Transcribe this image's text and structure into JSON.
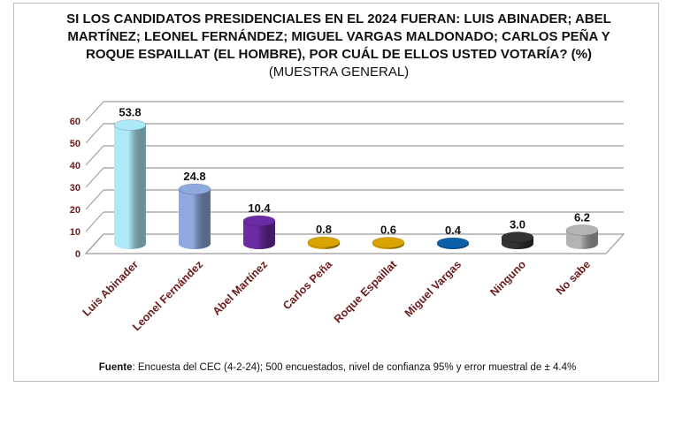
{
  "chart_data": {
    "type": "bar",
    "title": "SI LOS CANDIDATOS PRESIDENCIALES EN EL 2024 FUERAN: LUIS ABINADER; ABEL MARTÍNEZ; LEONEL FERNÁNDEZ; MIGUEL VARGAS MALDONADO; CARLOS PEÑA Y ROQUE ESPAILLAT (EL HOMBRE), POR CUÁL DE ELLOS USTED VOTARÍA? (%)",
    "subtitle": "(MUESTRA GENERAL)",
    "categories": [
      "Luis Abinader",
      "Leonel Fernández",
      "Abel Martínez",
      "Carlos Peña",
      "Roque Espaillat",
      "Miguel Vargas",
      "Ninguno",
      "No sabe"
    ],
    "values": [
      53.8,
      24.8,
      10.4,
      0.8,
      0.6,
      0.4,
      3.0,
      6.2
    ],
    "value_labels": [
      "53.8",
      "24.8",
      "10.4",
      "0.8",
      "0.6",
      "0.4",
      "3.0",
      "6.2"
    ],
    "colors": [
      "#aee9f7",
      "#8ea9dd",
      "#6b2ba3",
      "#d9a300",
      "#d9a300",
      "#0c5fa9",
      "#333333",
      "#b3b3b3"
    ],
    "ylim": [
      0,
      60
    ],
    "yticks": [
      "0",
      "10",
      "20",
      "30",
      "40",
      "50",
      "60"
    ],
    "grid": true,
    "style": "3d-cylinder",
    "xlabel": "",
    "ylabel": ""
  },
  "footer": {
    "label": "Fuente",
    "text": ": Encuesta del CEC (4-2-24); 500 encuestados, nivel de confianza 95% y error muestral de ± 4.4%"
  }
}
